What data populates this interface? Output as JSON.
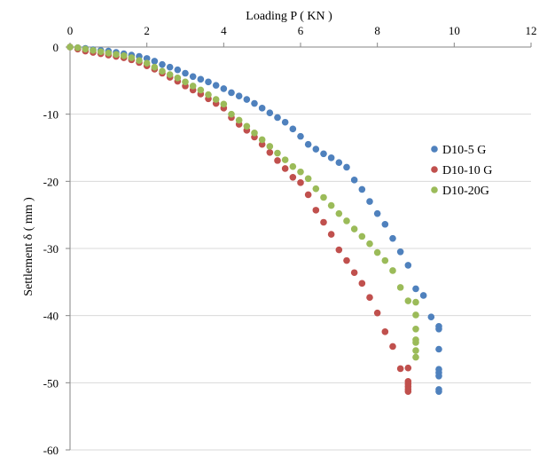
{
  "chart_data": {
    "type": "scatter",
    "xlabel": "Loading P ( KN )",
    "ylabel": "Settlement δ ( mm )",
    "xlim": [
      0,
      12
    ],
    "ylim": [
      -60,
      0
    ],
    "x_ticks": [
      "0",
      "2",
      "4",
      "6",
      "8",
      "10",
      "12"
    ],
    "y_ticks": [
      "0",
      "-10",
      "-20",
      "-30",
      "-40",
      "-50",
      "-60"
    ],
    "x_axis_position": "top",
    "grid": "horizontal",
    "legend_position": "right",
    "series": [
      {
        "name": "D10-5 G",
        "color": "#4f81bd",
        "x": [
          0.0,
          0.2,
          0.4,
          0.6,
          0.8,
          1.0,
          1.2,
          1.4,
          1.6,
          1.8,
          2.0,
          2.2,
          2.4,
          2.6,
          2.8,
          3.0,
          3.2,
          3.4,
          3.6,
          3.8,
          4.0,
          4.2,
          4.4,
          4.6,
          4.8,
          5.0,
          5.2,
          5.4,
          5.6,
          5.8,
          6.0,
          6.2,
          6.4,
          6.6,
          6.8,
          7.0,
          7.2,
          7.4,
          7.6,
          7.8,
          8.0,
          8.2,
          8.4,
          8.6,
          8.8,
          9.0,
          9.2,
          9.4,
          9.6,
          9.6,
          9.6,
          9.6,
          9.6,
          9.6,
          9.6,
          9.6
        ],
        "y": [
          0.0,
          -0.1,
          -0.2,
          -0.4,
          -0.5,
          -0.6,
          -0.8,
          -1.0,
          -1.2,
          -1.4,
          -1.7,
          -2.1,
          -2.6,
          -3.0,
          -3.4,
          -3.9,
          -4.4,
          -4.8,
          -5.2,
          -5.7,
          -6.2,
          -6.8,
          -7.3,
          -7.8,
          -8.4,
          -9.1,
          -9.8,
          -10.5,
          -11.2,
          -12.2,
          -13.3,
          -14.5,
          -15.2,
          -15.9,
          -16.5,
          -17.2,
          -17.9,
          -19.8,
          -21.2,
          -23.0,
          -24.8,
          -26.4,
          -28.5,
          -30.5,
          -32.5,
          -36.0,
          -37.0,
          -40.2,
          -41.6,
          -42.0,
          -45.0,
          -51.0,
          -51.3,
          -48.0,
          -48.5,
          -49.0
        ],
        "marker": "circle"
      },
      {
        "name": "D10-10 G",
        "color": "#c0504d",
        "x": [
          0.0,
          0.2,
          0.4,
          0.6,
          0.8,
          1.0,
          1.2,
          1.4,
          1.6,
          1.8,
          2.0,
          2.2,
          2.4,
          2.6,
          2.8,
          3.0,
          3.2,
          3.4,
          3.6,
          3.8,
          4.0,
          4.2,
          4.4,
          4.6,
          4.8,
          5.0,
          5.2,
          5.4,
          5.6,
          5.8,
          6.0,
          6.2,
          6.4,
          6.6,
          6.8,
          7.0,
          7.2,
          7.4,
          7.6,
          7.8,
          8.0,
          8.2,
          8.4,
          8.6,
          8.8,
          8.8,
          8.8,
          8.8,
          8.8,
          8.8
        ],
        "y": [
          0.0,
          -0.3,
          -0.6,
          -0.8,
          -1.0,
          -1.2,
          -1.4,
          -1.6,
          -1.9,
          -2.3,
          -2.8,
          -3.3,
          -3.9,
          -4.5,
          -5.1,
          -5.8,
          -6.4,
          -7.0,
          -7.7,
          -8.4,
          -9.1,
          -10.5,
          -11.5,
          -12.4,
          -13.4,
          -14.5,
          -15.7,
          -16.9,
          -18.1,
          -19.4,
          -20.2,
          -22.0,
          -24.3,
          -26.1,
          -27.9,
          -30.2,
          -31.8,
          -33.6,
          -35.2,
          -37.3,
          -39.6,
          -42.4,
          -44.6,
          -47.9,
          -49.8,
          -50.2,
          -50.6,
          -51.0,
          -51.3,
          -47.8
        ],
        "marker": "circle"
      },
      {
        "name": "D10-20G",
        "color": "#9bbb59",
        "x": [
          0.0,
          0.2,
          0.4,
          0.6,
          0.8,
          1.0,
          1.2,
          1.4,
          1.6,
          1.8,
          2.0,
          2.2,
          2.4,
          2.6,
          2.8,
          3.0,
          3.2,
          3.4,
          3.6,
          3.8,
          4.0,
          4.2,
          4.4,
          4.6,
          4.8,
          5.0,
          5.2,
          5.4,
          5.6,
          5.8,
          6.0,
          6.2,
          6.4,
          6.6,
          6.8,
          7.0,
          7.2,
          7.4,
          7.6,
          7.8,
          8.0,
          8.2,
          8.4,
          8.6,
          8.8,
          9.0,
          9.0,
          9.0,
          9.0,
          9.0,
          9.0,
          9.0
        ],
        "y": [
          0.0,
          -0.1,
          -0.3,
          -0.5,
          -0.7,
          -0.9,
          -1.1,
          -1.3,
          -1.6,
          -2.0,
          -2.4,
          -3.0,
          -3.6,
          -4.1,
          -4.6,
          -5.2,
          -5.8,
          -6.4,
          -7.1,
          -7.8,
          -8.5,
          -10.0,
          -10.9,
          -11.8,
          -12.8,
          -13.8,
          -14.8,
          -15.8,
          -16.8,
          -17.8,
          -18.6,
          -19.6,
          -21.1,
          -22.4,
          -23.6,
          -24.8,
          -25.9,
          -27.1,
          -28.2,
          -29.3,
          -30.6,
          -31.8,
          -33.3,
          -35.8,
          -37.8,
          -39.9,
          -42.0,
          -43.6,
          -45.2,
          -46.2,
          -44.0,
          -38.0
        ],
        "marker": "circle"
      }
    ]
  }
}
